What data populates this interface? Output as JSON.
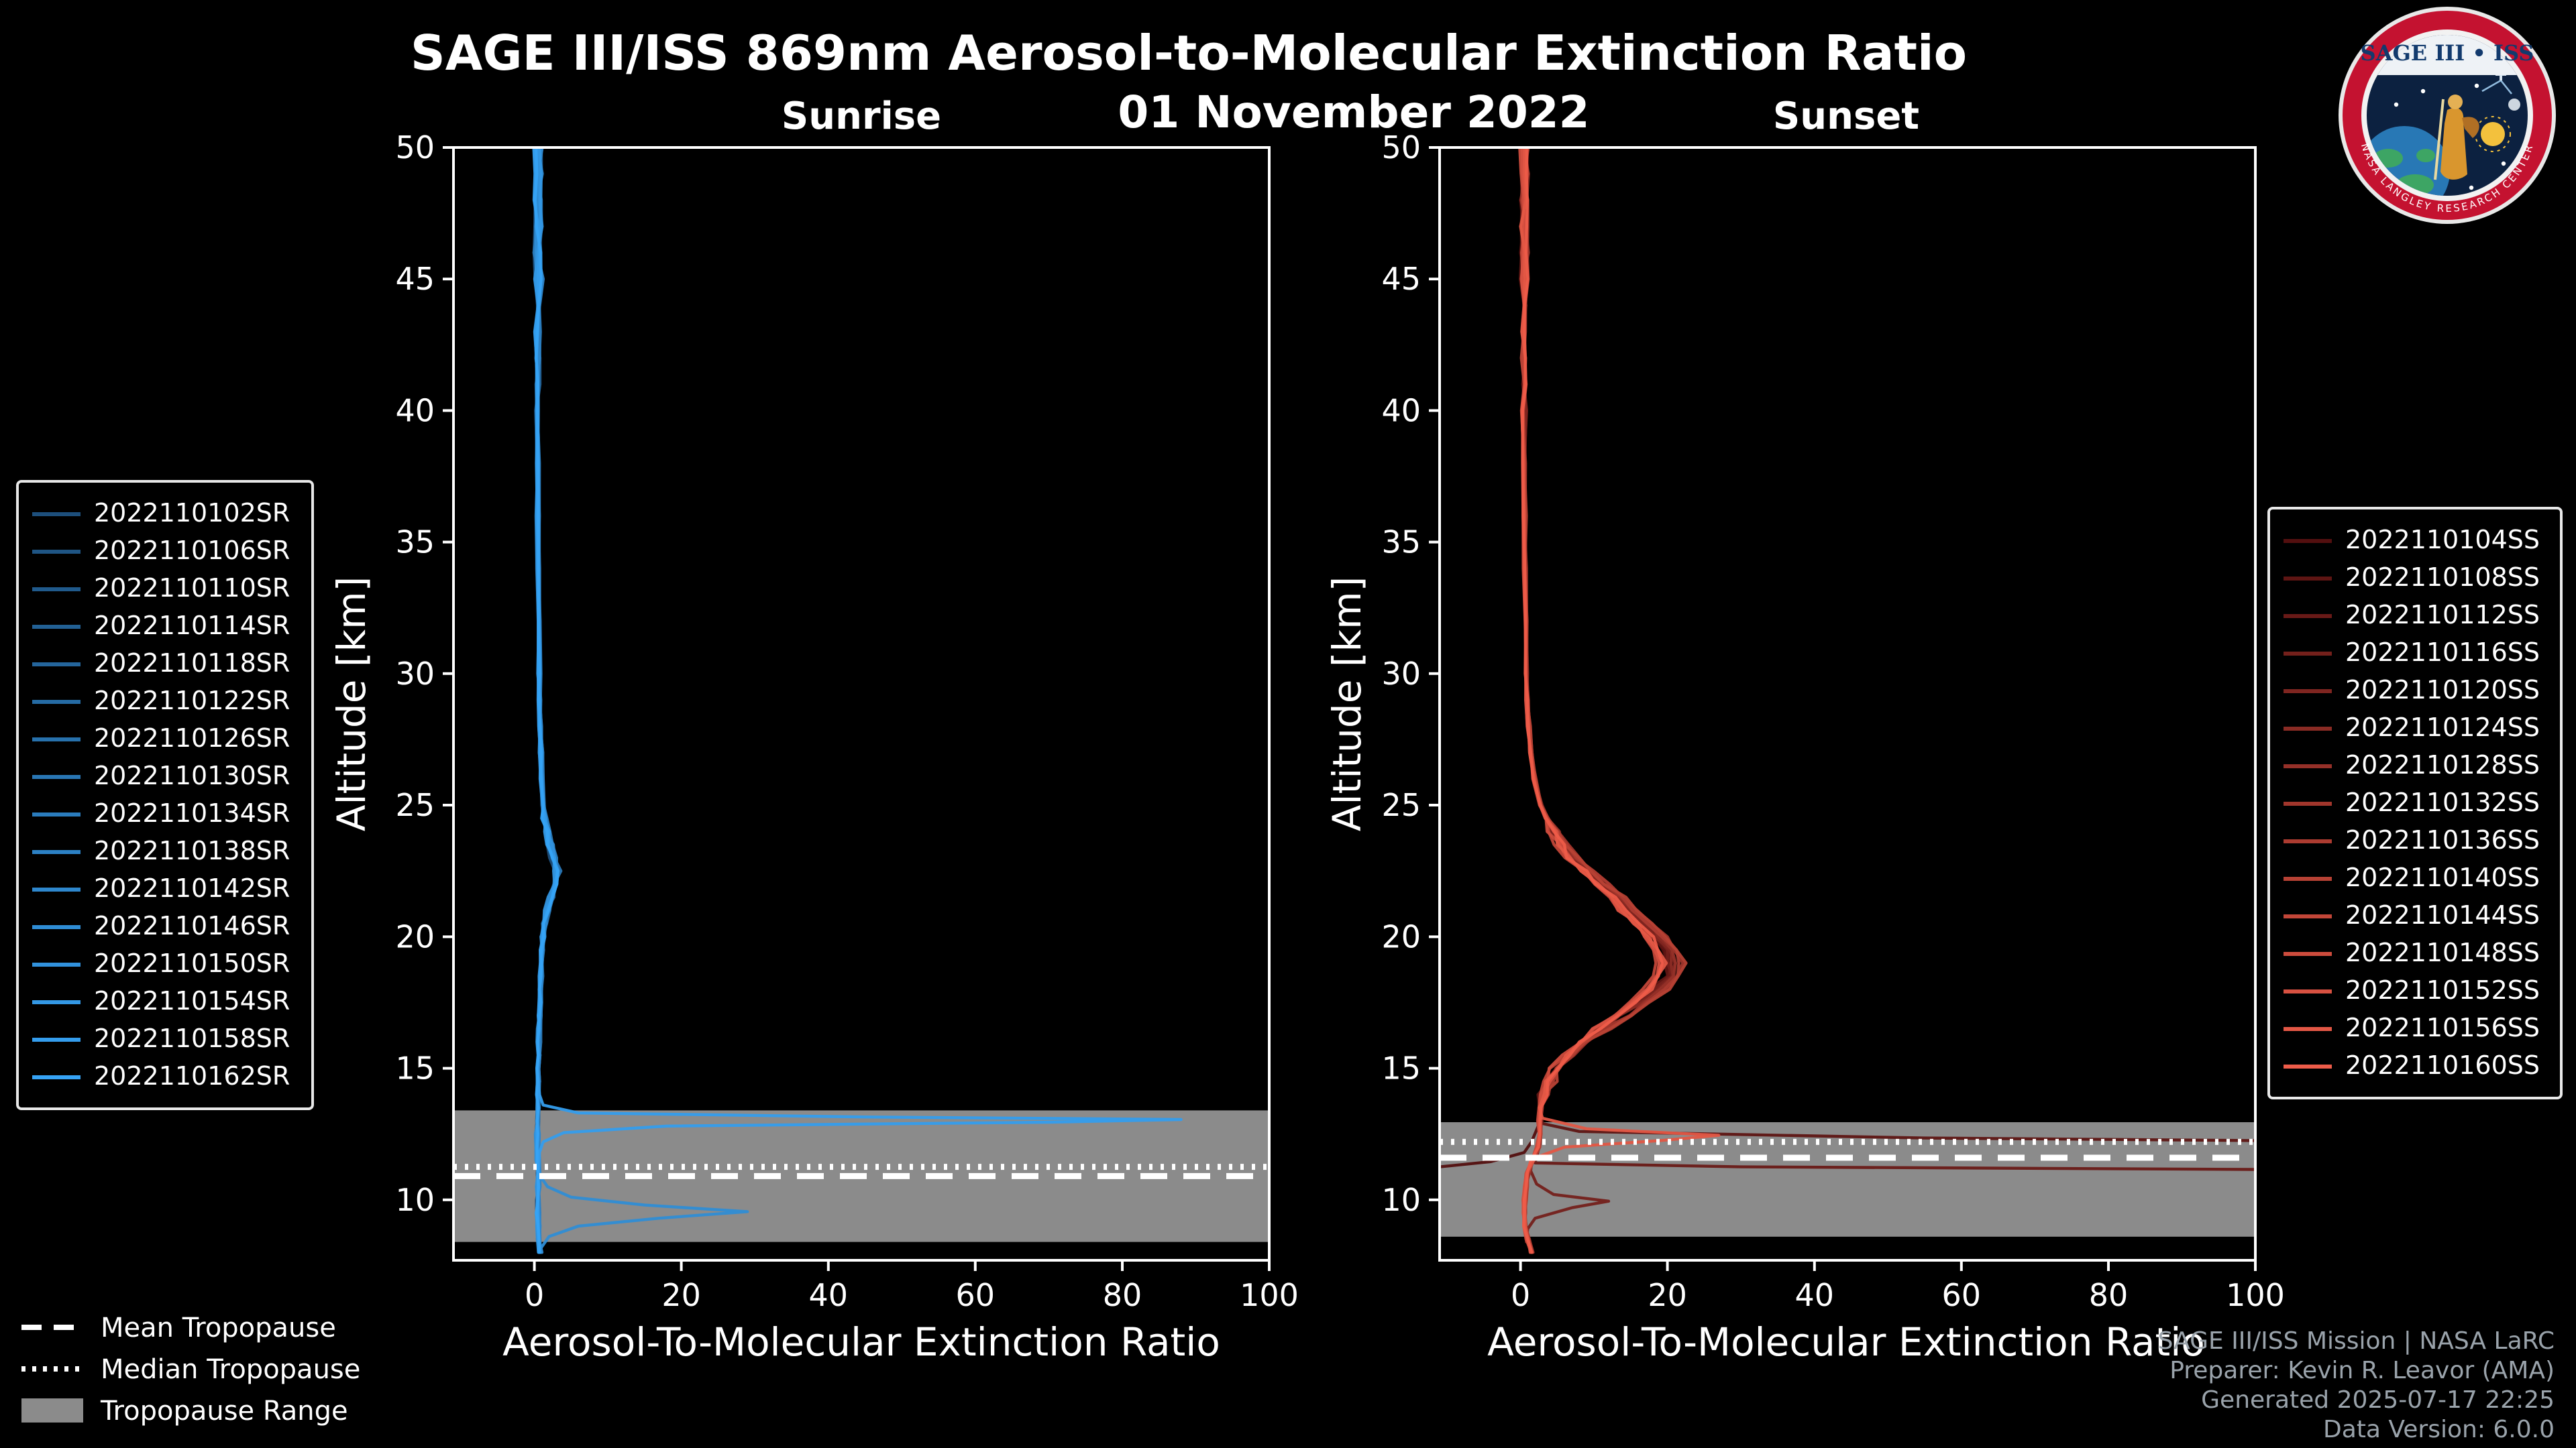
{
  "header": {
    "title": "SAGE III/ISS 869nm Aerosol-to-Molecular Extinction Ratio",
    "date": "01 November 2022"
  },
  "logo": {
    "title": "SAGE III • ISS",
    "ring_text": "NASA LANGLEY RESEARCH CENTER"
  },
  "colors": {
    "background": "#000000",
    "axis": "#ffffff",
    "band": "#8b8b8b",
    "footer_text": "#9aa3ab"
  },
  "tropopause_legend": {
    "items": [
      {
        "label": "Mean Tropopause",
        "style": "dashed"
      },
      {
        "label": "Median Tropopause",
        "style": "dotted"
      },
      {
        "label": "Tropopause Range",
        "style": "band"
      }
    ]
  },
  "footer": {
    "lines": [
      "SAGE III/ISS Mission | NASA LaRC",
      "Preparer: Kevin R. Leavor (AMA)",
      "Generated 2025-07-17 22:25",
      "Data Version: 6.0.0"
    ]
  },
  "chart_data": [
    {
      "type": "line",
      "panel": "sunrise",
      "title": "Sunrise",
      "xlabel": "Aerosol-To-Molecular Extinction Ratio",
      "ylabel": "Altitude [km]",
      "xlim": [
        -11,
        100
      ],
      "ylim": [
        7.7,
        50
      ],
      "xticks": [
        0,
        20,
        40,
        60,
        80,
        100
      ],
      "yticks": [
        10,
        15,
        20,
        25,
        30,
        35,
        40,
        45,
        50
      ],
      "line_color_start": "#1d4f7c",
      "line_color_end": "#36a3f5",
      "tropopause": {
        "mean_km": 10.9,
        "median_km": 11.25,
        "range_km": [
          8.4,
          13.4
        ]
      },
      "series_names": [
        "2022110102SR",
        "2022110106SR",
        "2022110110SR",
        "2022110114SR",
        "2022110118SR",
        "2022110122SR",
        "2022110126SR",
        "2022110130SR",
        "2022110134SR",
        "2022110138SR",
        "2022110142SR",
        "2022110146SR",
        "2022110150SR",
        "2022110154SR",
        "2022110158SR",
        "2022110162SR"
      ],
      "base_profile": {
        "altitude_km": [
          50,
          49,
          48,
          47,
          46,
          45,
          44,
          43,
          42,
          41,
          40,
          38,
          36,
          34,
          32,
          30,
          29,
          28,
          27,
          26,
          25,
          24.5,
          24,
          23.5,
          23,
          22.5,
          22,
          21.5,
          21,
          20.5,
          20,
          19.5,
          19,
          18.5,
          18,
          17.5,
          17,
          16.5,
          16,
          15.5,
          15,
          14.5,
          14,
          13.5,
          13,
          12.5,
          12,
          11.5,
          11,
          10.5,
          10,
          9.5,
          9,
          8.5,
          8
        ],
        "ratio": [
          0.5,
          0.6,
          0.45,
          0.65,
          0.4,
          0.55,
          0.5,
          0.45,
          0.5,
          0.5,
          0.45,
          0.5,
          0.5,
          0.5,
          0.55,
          0.65,
          0.7,
          0.8,
          0.9,
          1.0,
          1.2,
          1.45,
          1.8,
          2.2,
          2.6,
          3.1,
          2.9,
          2.3,
          1.8,
          1.4,
          1.2,
          1.05,
          0.95,
          0.9,
          0.85,
          0.8,
          0.75,
          0.7,
          0.65,
          0.6,
          0.6,
          0.55,
          0.5,
          0.5,
          0.45,
          0.4,
          0.4,
          0.5,
          0.6,
          0.5,
          0.5,
          0.5,
          0.5,
          0.6,
          0.8
        ]
      },
      "outliers": {
        "2022110158SR": {
          "below_km": 14.5,
          "points": [
            [
              14.0,
              0.7
            ],
            [
              13.6,
              1.2
            ],
            [
              13.3,
              6
            ],
            [
              13.15,
              45
            ],
            [
              13.05,
              88
            ],
            [
              12.95,
              70
            ],
            [
              12.8,
              18
            ],
            [
              12.55,
              4
            ],
            [
              12.2,
              1.2
            ],
            [
              11.8,
              0.7
            ],
            [
              11.2,
              0.6
            ],
            [
              10.5,
              0.5
            ],
            [
              9.5,
              0.5
            ],
            [
              8.5,
              0.6
            ],
            [
              8.0,
              0.7
            ]
          ]
        },
        "2022110146SR": {
          "below_km": 11.2,
          "points": [
            [
              10.9,
              0.8
            ],
            [
              10.5,
              1.8
            ],
            [
              10.1,
              5
            ],
            [
              9.8,
              15
            ],
            [
              9.55,
              29
            ],
            [
              9.3,
              17
            ],
            [
              9.0,
              6
            ],
            [
              8.6,
              2
            ],
            [
              8.2,
              1
            ]
          ]
        }
      }
    },
    {
      "type": "line",
      "panel": "sunset",
      "title": "Sunset",
      "xlabel": "Aerosol-To-Molecular Extinction Ratio",
      "ylabel": "Altitude [km]",
      "xlim": [
        -11,
        100
      ],
      "ylim": [
        7.7,
        50
      ],
      "xticks": [
        0,
        20,
        40,
        60,
        80,
        100
      ],
      "yticks": [
        10,
        15,
        20,
        25,
        30,
        35,
        40,
        45,
        50
      ],
      "line_color_start": "#530f0f",
      "line_color_end": "#ee5c49",
      "tropopause": {
        "mean_km": 11.6,
        "median_km": 12.2,
        "range_km": [
          8.6,
          12.95
        ]
      },
      "series_names": [
        "2022110104SS",
        "2022110108SS",
        "2022110112SS",
        "2022110116SS",
        "2022110120SS",
        "2022110124SS",
        "2022110128SS",
        "2022110132SS",
        "2022110136SS",
        "2022110140SS",
        "2022110144SS",
        "2022110148SS",
        "2022110152SS",
        "2022110156SS",
        "2022110160SS"
      ],
      "base_profile": {
        "altitude_km": [
          50,
          49,
          48,
          47,
          46,
          45,
          44,
          43,
          42,
          41,
          40,
          38,
          36,
          34,
          32,
          30,
          29,
          28,
          27,
          26,
          25,
          24.5,
          24,
          23.5,
          23,
          22.5,
          22,
          21.5,
          21,
          20.5,
          20,
          19.5,
          19,
          18.5,
          18,
          17.5,
          17,
          16.5,
          16,
          15.5,
          15,
          14.5,
          14,
          13.5,
          13,
          12.5,
          12,
          11.5,
          11,
          10.5,
          10,
          9.5,
          9,
          8.5,
          8
        ],
        "ratio": [
          0.5,
          0.55,
          0.5,
          0.6,
          0.5,
          0.55,
          0.5,
          0.5,
          0.55,
          0.5,
          0.5,
          0.5,
          0.55,
          0.6,
          0.65,
          0.8,
          0.9,
          1.1,
          1.4,
          1.9,
          2.8,
          3.6,
          4.6,
          5.8,
          7.2,
          9.0,
          11.0,
          12.8,
          14.8,
          16.8,
          18.4,
          19.6,
          20.4,
          20.0,
          18.4,
          16.2,
          13.6,
          11.0,
          8.6,
          6.6,
          5.0,
          4.0,
          3.2,
          2.8,
          2.6,
          2.8,
          2.4,
          1.6,
          1.0,
          0.7,
          0.6,
          0.5,
          0.6,
          1.0,
          1.5
        ]
      },
      "outliers": {
        "2022110104SS": {
          "below_km": 12.6,
          "points": [
            [
              12.2,
              1.5
            ],
            [
              11.8,
              0.5
            ],
            [
              11.45,
              -4
            ],
            [
              11.25,
              -11
            ]
          ]
        },
        "2022110108SS": {
          "below_km": 13.2,
          "points": [
            [
              12.9,
              3
            ],
            [
              12.6,
              8
            ],
            [
              12.35,
              55
            ],
            [
              12.25,
              100
            ],
            [
              12.2,
              102
            ]
          ]
        },
        "2022110112SS": {
          "below_km": 11.6,
          "points": [
            [
              11.4,
              2
            ],
            [
              11.25,
              30
            ],
            [
              11.15,
              102
            ]
          ]
        },
        "2022110116SS": {
          "below_km": 11.4,
          "points": [
            [
              11.1,
              1.4
            ],
            [
              10.6,
              2.2
            ],
            [
              10.2,
              4.5
            ],
            [
              9.95,
              12
            ],
            [
              9.7,
              7
            ],
            [
              9.3,
              2
            ],
            [
              8.9,
              1
            ],
            [
              8.4,
              0.8
            ]
          ]
        },
        "2022110156SS": {
          "below_km": 13.4,
          "points": [
            [
              13.1,
              3
            ],
            [
              12.7,
              9
            ],
            [
              12.45,
              27
            ],
            [
              12.25,
              19
            ],
            [
              12.0,
              6
            ],
            [
              11.6,
              2
            ],
            [
              11.1,
              1
            ],
            [
              10.4,
              0.7
            ],
            [
              9.6,
              0.6
            ],
            [
              8.8,
              0.7
            ],
            [
              8.2,
              1.3
            ]
          ]
        }
      }
    }
  ]
}
